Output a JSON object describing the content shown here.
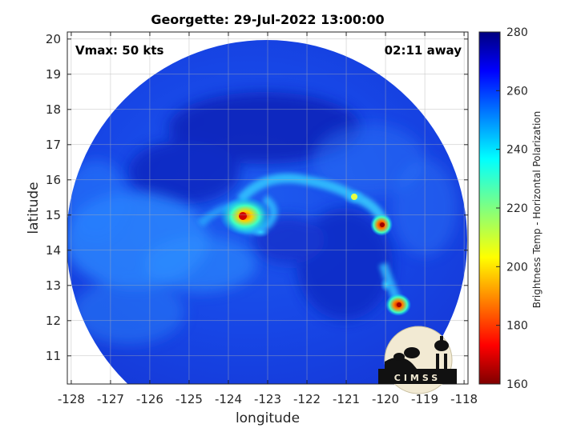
{
  "title": "Georgette: 29-Jul-2022 13:00:00",
  "annotations": {
    "vmax": "Vmax: 50 kts",
    "time_away": "02:11 away"
  },
  "x_axis": {
    "label": "longitude",
    "ticks": [
      "-128",
      "-127",
      "-126",
      "-125",
      "-124",
      "-123",
      "-122",
      "-121",
      "-120",
      "-119",
      "-118"
    ]
  },
  "y_axis": {
    "label": "latitude",
    "ticks": [
      "11",
      "12",
      "13",
      "14",
      "15",
      "16",
      "17",
      "18",
      "19",
      "20"
    ]
  },
  "colorbar": {
    "label": "Brightness Temp - Horizontal Polarization",
    "ticks": [
      "280",
      "260",
      "240",
      "220",
      "200",
      "180",
      "160"
    ]
  },
  "logo": {
    "text": "CIMSS"
  },
  "map_data": {
    "type": "microwave brightness temperature swath",
    "lon_range": [
      -128.1,
      -117.9
    ],
    "lat_range": [
      10.2,
      20.2
    ],
    "color_range": [
      160,
      280
    ],
    "colormap": "jet",
    "storm_center": {
      "lon": -123.5,
      "lat": 14.9
    }
  }
}
